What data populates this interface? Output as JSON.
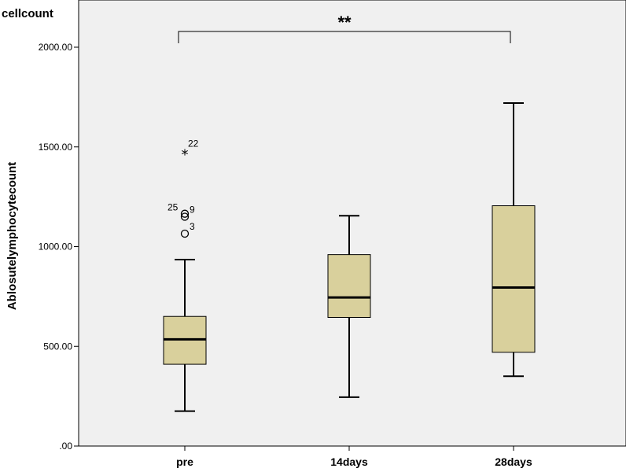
{
  "chart_data": {
    "type": "box",
    "title": "cellcount",
    "ylabel": "Ablosutelymphocytecount",
    "xlabel": "",
    "ylim": [
      0,
      2200
    ],
    "yticks": [
      0,
      500,
      1000,
      1500,
      2000
    ],
    "ytick_labels": [
      ".00",
      "500.00",
      "1000.00",
      "1500.00",
      "2000.00"
    ],
    "grid": false,
    "box_color": "#d9d09c",
    "plot_bg_color": "#f0f0f0",
    "categories": [
      "pre",
      "14days",
      "28days"
    ],
    "boxes": [
      {
        "category": "pre",
        "whisker_low": 175,
        "q1": 410,
        "median": 535,
        "q3": 650,
        "whisker_high": 935
      },
      {
        "category": "14days",
        "whisker_low": 245,
        "q1": 645,
        "median": 745,
        "q3": 960,
        "whisker_high": 1155
      },
      {
        "category": "28days",
        "whisker_low": 350,
        "q1": 470,
        "median": 795,
        "q3": 1205,
        "whisker_high": 1720
      }
    ],
    "outliers": [
      {
        "category": "pre",
        "value": 1470,
        "marker": "*",
        "label": "22"
      },
      {
        "category": "pre",
        "value": 1165,
        "marker": "o",
        "label": "25"
      },
      {
        "category": "pre",
        "value": 1150,
        "marker": "o",
        "label": "9"
      },
      {
        "category": "pre",
        "value": 1065,
        "marker": "o",
        "label": "3"
      }
    ],
    "significance": {
      "from": "pre",
      "to": "28days",
      "label": "**"
    }
  }
}
